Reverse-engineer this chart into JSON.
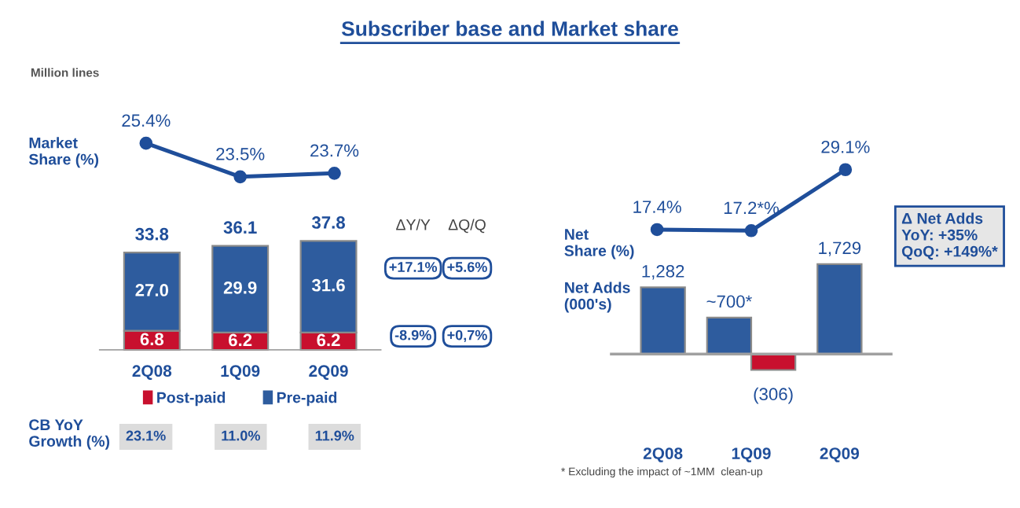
{
  "chart_data": [
    {
      "type": "line",
      "title": "Subscriber base and Market share",
      "subtitle": "Million lines",
      "ylabel": "Market\nShare (%)",
      "categories": [
        null,
        null,
        null
      ],
      "values": [
        25.4,
        23.5,
        23.7
      ],
      "value_labels": [
        "25.4%",
        "23.5%",
        "23.7%"
      ],
      "color": "#1f4e9a",
      "marker": "circle",
      "tick_labels": false
    },
    {
      "type": "bar",
      "stacked": true,
      "categories": [
        "2Q08",
        "1Q09",
        "2Q09"
      ],
      "series": [
        {
          "name": "Post-paid",
          "color": "#c8102e",
          "values": [
            6.8,
            6.2,
            6.2
          ],
          "value_labels": [
            "6.8",
            "6.2",
            "6.2"
          ]
        },
        {
          "name": "Pre-paid",
          "color": "#2e5c9e",
          "values": [
            27.0,
            29.9,
            31.6
          ],
          "value_labels": [
            "27.0",
            "29.9",
            "31.6"
          ]
        }
      ],
      "totals": [
        "33.8",
        "36.1",
        "37.8"
      ],
      "legend": "bottom",
      "tick_labels": "x",
      "annotations": [
        "ΔY/Y",
        "ΔQ/Q",
        "+17.1%",
        "+5.6%",
        "-8.9%",
        "+0,7%",
        "CB YoY\nGrowth (%)",
        "23.1%",
        "11.0%",
        "11.9%"
      ]
    },
    {
      "type": "line",
      "ylabel": "Net\nShare (%)",
      "categories": [
        null,
        null,
        null
      ],
      "values": [
        17.4,
        17.2,
        29.1
      ],
      "value_labels": [
        "17.4%",
        "17.2*%",
        "29.1%"
      ],
      "color": "#1f4e9a",
      "marker": "circle",
      "tick_labels": false
    },
    {
      "type": "bar",
      "ylabel": "Net Adds\n(000's)",
      "categories": [
        "2Q08",
        "1Q09",
        "2Q09"
      ],
      "tick_labels": "x",
      "series": [
        {
          "color": "#2e5c9e",
          "values": [
            1282,
            700,
            1729
          ],
          "value_labels": [
            "1,282",
            "~700*",
            "1,729"
          ]
        },
        {
          "color": "#c8102e",
          "values": [
            null,
            -306,
            null
          ],
          "value_labels": [
            null,
            "(306)",
            null
          ]
        }
      ],
      "annotations": [
        "Δ Net Adds\nYoY: +35%\nQoQ: +149%*",
        "* Excluding the impact of ~1MM  clean-up"
      ]
    }
  ]
}
